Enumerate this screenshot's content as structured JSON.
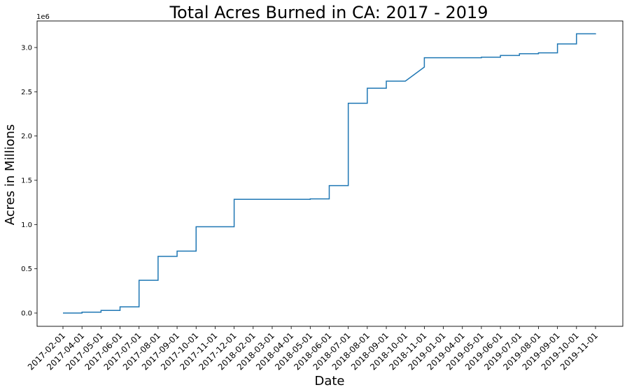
{
  "chart_data": {
    "type": "line",
    "drawstyle": "steps-post",
    "title": "Total Acres Burned in CA: 2017 - 2019",
    "xlabel": "Date",
    "ylabel": "Acres in Millions",
    "y_offset_label": "1e6",
    "ylim": [
      -0.15,
      3.3
    ],
    "yticks": [
      0.0,
      0.5,
      1.0,
      1.5,
      2.0,
      2.5,
      3.0
    ],
    "ytick_labels": [
      "0.0",
      "0.5",
      "1.0",
      "1.5",
      "2.0",
      "2.5",
      "3.0"
    ],
    "categories": [
      "2017-02-01",
      "2017-04-01",
      "2017-05-01",
      "2017-06-01",
      "2017-07-01",
      "2017-08-01",
      "2017-09-01",
      "2017-10-01",
      "2017-11-01",
      "2017-12-01",
      "2018-02-01",
      "2018-03-01",
      "2018-04-01",
      "2018-05-01",
      "2018-06-01",
      "2018-07-01",
      "2018-08-01",
      "2018-09-01",
      "2018-10-01",
      "2018-11-01",
      "2019-01-01",
      "2019-04-01",
      "2019-05-01",
      "2019-06-01",
      "2019-07-01",
      "2019-08-01",
      "2019-09-01",
      "2019-10-01",
      "2019-11-01"
    ],
    "series": [
      {
        "name": "Total Acres Burned",
        "color": "#1f77b4",
        "values": [
          0.0,
          0.01,
          0.03,
          0.07,
          0.37,
          0.64,
          0.7,
          0.975,
          0.975,
          1.285,
          1.285,
          1.285,
          1.285,
          1.29,
          1.44,
          2.37,
          2.54,
          2.62,
          2.62,
          2.885,
          2.885,
          2.885,
          2.89,
          2.91,
          2.93,
          2.94,
          3.04,
          3.155,
          3.16
        ],
        "ramp_segments": [
          18
        ]
      }
    ],
    "grid": false
  }
}
